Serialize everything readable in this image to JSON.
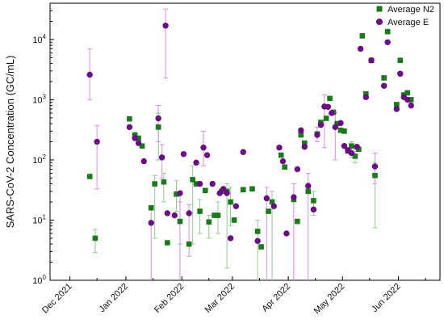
{
  "chart_data": {
    "type": "scatter",
    "title": "",
    "xlabel": "",
    "ylabel": "SARS-CoV-2 Concentration (GC/mL)",
    "yscale": "log",
    "ylim": [
      1,
      40000
    ],
    "xlim": [
      "2021-11-20",
      "2022-06-24"
    ],
    "grid": false,
    "legend_position": "top-right",
    "x_ticks": [
      {
        "date": "2021-12-01",
        "label": "Dec 2021"
      },
      {
        "date": "2022-01-01",
        "label": "Jan 2022"
      },
      {
        "date": "2022-02-01",
        "label": "Feb 2022"
      },
      {
        "date": "2022-03-01",
        "label": "Mar 2022"
      },
      {
        "date": "2022-04-01",
        "label": "Apr 2022"
      },
      {
        "date": "2022-05-01",
        "label": "May 2022"
      },
      {
        "date": "2022-06-01",
        "label": "Jun 2022"
      }
    ],
    "y_ticks": [
      {
        "value": 1,
        "label": "10^0"
      },
      {
        "value": 10,
        "label": "10^1"
      },
      {
        "value": 100,
        "label": "10^2"
      },
      {
        "value": 1000,
        "label": "10^3"
      },
      {
        "value": 10000,
        "label": "10^4"
      }
    ],
    "series": [
      {
        "name": "Average N2",
        "marker": "square",
        "color": "#1a7a1a",
        "error_color": "#8ccf8c",
        "points": [
          {
            "x": "2021-12-12",
            "y": 53
          },
          {
            "x": "2021-12-15",
            "y": 5,
            "ylow": 2.9,
            "yhigh": 7
          },
          {
            "x": "2022-01-03",
            "y": 480
          },
          {
            "x": "2022-01-06",
            "y": 260
          },
          {
            "x": "2022-01-08",
            "y": 230
          },
          {
            "x": "2022-01-10",
            "y": 170
          },
          {
            "x": "2022-01-15",
            "y": 16
          },
          {
            "x": "2022-01-17",
            "y": 40,
            "ylow": 5,
            "yhigh": 55
          },
          {
            "x": "2022-01-19",
            "y": 350,
            "ylow": 100,
            "yhigh": 600
          },
          {
            "x": "2022-01-22",
            "y": 43,
            "ylow": 20,
            "yhigh": 60
          },
          {
            "x": "2022-01-24",
            "y": 4.2
          },
          {
            "x": "2022-01-29",
            "y": 27,
            "ylow": 14,
            "yhigh": 45
          },
          {
            "x": "2022-01-31",
            "y": 9.5,
            "ylow": 4,
            "yhigh": 20
          },
          {
            "x": "2022-02-05",
            "y": 4
          },
          {
            "x": "2022-02-07",
            "y": 47,
            "ylow": 4,
            "yhigh": 80
          },
          {
            "x": "2022-02-09",
            "y": 40
          },
          {
            "x": "2022-02-11",
            "y": 14,
            "ylow": 6,
            "yhigh": 22
          },
          {
            "x": "2022-02-14",
            "y": 31
          },
          {
            "x": "2022-02-16",
            "y": 9.3,
            "ylow": 5,
            "yhigh": 12
          },
          {
            "x": "2022-02-19",
            "y": 12
          },
          {
            "x": "2022-02-21",
            "y": 12,
            "ylow": 6,
            "yhigh": 20
          },
          {
            "x": "2022-02-23",
            "y": 30
          },
          {
            "x": "2022-02-26",
            "y": 30,
            "ylow": 1.6,
            "yhigh": 40
          },
          {
            "x": "2022-02-28",
            "y": 20,
            "ylow": 8,
            "yhigh": 35
          },
          {
            "x": "2022-03-02",
            "y": 10
          },
          {
            "x": "2022-03-07",
            "y": 32
          },
          {
            "x": "2022-03-12",
            "y": 33
          },
          {
            "x": "2022-03-15",
            "y": 6.5,
            "ylow": 1,
            "yhigh": 10
          },
          {
            "x": "2022-03-17",
            "y": 3.6
          },
          {
            "x": "2022-03-21",
            "y": 14
          },
          {
            "x": "2022-03-23",
            "y": 20,
            "ylow": 1,
            "yhigh": 30
          },
          {
            "x": "2022-03-28",
            "y": 120
          },
          {
            "x": "2022-03-30",
            "y": 76
          },
          {
            "x": "2022-04-04",
            "y": 22
          },
          {
            "x": "2022-04-06",
            "y": 9.5
          },
          {
            "x": "2022-04-08",
            "y": 260
          },
          {
            "x": "2022-04-10",
            "y": 190
          },
          {
            "x": "2022-04-12",
            "y": 30
          },
          {
            "x": "2022-04-15",
            "y": 21,
            "ylow": 12,
            "yhigh": 30
          },
          {
            "x": "2022-04-17",
            "y": 270,
            "ylow": 200,
            "yhigh": 350
          },
          {
            "x": "2022-04-19",
            "y": 420
          },
          {
            "x": "2022-04-22",
            "y": 490
          },
          {
            "x": "2022-04-24",
            "y": 1050
          },
          {
            "x": "2022-04-26",
            "y": 620
          },
          {
            "x": "2022-04-28",
            "y": 400
          },
          {
            "x": "2022-04-30",
            "y": 310
          },
          {
            "x": "2022-05-02",
            "y": 300
          },
          {
            "x": "2022-05-04",
            "y": 140
          },
          {
            "x": "2022-05-06",
            "y": 170,
            "ylow": 110,
            "yhigh": 200
          },
          {
            "x": "2022-05-08",
            "y": 115,
            "ylow": 90,
            "yhigh": 150
          },
          {
            "x": "2022-05-10",
            "y": 150
          },
          {
            "x": "2022-05-12",
            "y": 11500
          },
          {
            "x": "2022-05-14",
            "y": 1250
          },
          {
            "x": "2022-05-17",
            "y": 4500
          },
          {
            "x": "2022-05-19",
            "y": 55,
            "ylow": 7.5,
            "yhigh": 90
          },
          {
            "x": "2022-05-24",
            "y": 2300
          },
          {
            "x": "2022-05-26",
            "y": 13500
          },
          {
            "x": "2022-05-31",
            "y": 830
          },
          {
            "x": "2022-06-02",
            "y": 4500
          },
          {
            "x": "2022-06-04",
            "y": 1200
          },
          {
            "x": "2022-06-06",
            "y": 1300
          },
          {
            "x": "2022-06-08",
            "y": 1000
          }
        ]
      },
      {
        "name": "Average E",
        "marker": "circle",
        "color": "#6a0a86",
        "error_color": "#d98ee0",
        "points": [
          {
            "x": "2021-12-12",
            "y": 2600,
            "ylow": 1000,
            "yhigh": 7000
          },
          {
            "x": "2021-12-16",
            "y": 200,
            "ylow": 33,
            "yhigh": 370
          },
          {
            "x": "2022-01-03",
            "y": 350
          },
          {
            "x": "2022-01-06",
            "y": 230
          },
          {
            "x": "2022-01-08",
            "y": 190
          },
          {
            "x": "2022-01-11",
            "y": 95
          },
          {
            "x": "2022-01-15",
            "y": 9,
            "ylow": 1,
            "yhigh": 15
          },
          {
            "x": "2022-01-19",
            "y": 490,
            "ylow": 200,
            "yhigh": 800
          },
          {
            "x": "2022-01-21",
            "y": 110,
            "ylow": 50,
            "yhigh": 180
          },
          {
            "x": "2022-01-23",
            "y": 17000,
            "ylow": 2300,
            "yhigh": 32000
          },
          {
            "x": "2022-01-24",
            "y": 13
          },
          {
            "x": "2022-01-28",
            "y": 12
          },
          {
            "x": "2022-01-31",
            "y": 28,
            "ylow": 1,
            "yhigh": 30
          },
          {
            "x": "2022-02-02",
            "y": 125
          },
          {
            "x": "2022-02-05",
            "y": 13,
            "ylow": 2.5,
            "yhigh": 18
          },
          {
            "x": "2022-02-09",
            "y": 90
          },
          {
            "x": "2022-02-11",
            "y": 40
          },
          {
            "x": "2022-02-13",
            "y": 160,
            "ylow": 80,
            "yhigh": 300
          },
          {
            "x": "2022-02-15",
            "y": 120
          },
          {
            "x": "2022-02-18",
            "y": 40
          },
          {
            "x": "2022-02-22",
            "y": 28
          },
          {
            "x": "2022-02-24",
            "y": 33
          },
          {
            "x": "2022-02-26",
            "y": 28
          },
          {
            "x": "2022-02-28",
            "y": 5
          },
          {
            "x": "2022-03-03",
            "y": 17
          },
          {
            "x": "2022-03-07",
            "y": 135
          },
          {
            "x": "2022-03-15",
            "y": 4.5
          },
          {
            "x": "2022-03-20",
            "y": 23,
            "ylow": 1,
            "yhigh": 35
          },
          {
            "x": "2022-03-24",
            "y": 17
          },
          {
            "x": "2022-03-27",
            "y": 160
          },
          {
            "x": "2022-03-29",
            "y": 95
          },
          {
            "x": "2022-03-31",
            "y": 6
          },
          {
            "x": "2022-04-04",
            "y": 24,
            "ylow": 1,
            "yhigh": 40
          },
          {
            "x": "2022-04-06",
            "y": 70
          },
          {
            "x": "2022-04-08",
            "y": 310
          },
          {
            "x": "2022-04-10",
            "y": 165
          },
          {
            "x": "2022-04-12",
            "y": 37,
            "ylow": 1,
            "yhigh": 60
          },
          {
            "x": "2022-04-15",
            "y": 15
          },
          {
            "x": "2022-04-17",
            "y": 260,
            "ylow": 200,
            "yhigh": 350
          },
          {
            "x": "2022-04-19",
            "y": 380
          },
          {
            "x": "2022-04-21",
            "y": 770,
            "ylow": 160,
            "yhigh": 1200
          },
          {
            "x": "2022-04-23",
            "y": 760
          },
          {
            "x": "2022-04-25",
            "y": 600
          },
          {
            "x": "2022-04-27",
            "y": 350,
            "ylow": 100,
            "yhigh": 600
          },
          {
            "x": "2022-04-30",
            "y": 410
          },
          {
            "x": "2022-05-02",
            "y": 170
          },
          {
            "x": "2022-05-04",
            "y": 145
          },
          {
            "x": "2022-05-06",
            "y": 130
          },
          {
            "x": "2022-05-09",
            "y": 165
          },
          {
            "x": "2022-05-11",
            "y": 7000
          },
          {
            "x": "2022-05-14",
            "y": 1100
          },
          {
            "x": "2022-05-17",
            "y": 4500
          },
          {
            "x": "2022-05-19",
            "y": 78,
            "ylow": 40,
            "yhigh": 130
          },
          {
            "x": "2022-05-24",
            "y": 1700
          },
          {
            "x": "2022-05-26",
            "y": 9000
          },
          {
            "x": "2022-05-31",
            "y": 700
          },
          {
            "x": "2022-06-02",
            "y": 2700
          },
          {
            "x": "2022-06-04",
            "y": 1100
          },
          {
            "x": "2022-06-06",
            "y": 1000
          },
          {
            "x": "2022-06-08",
            "y": 800
          }
        ]
      }
    ]
  }
}
